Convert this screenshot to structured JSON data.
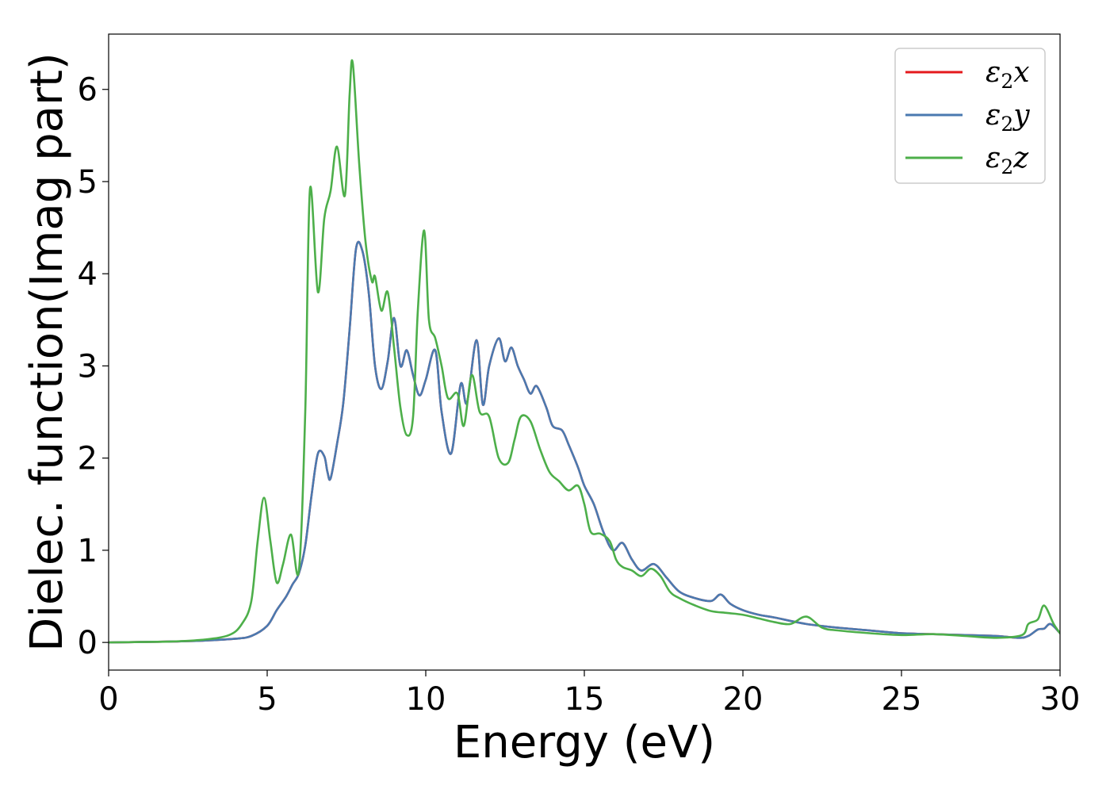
{
  "chart_data": {
    "type": "line",
    "title": "",
    "xlabel": "Energy (eV)",
    "ylabel": "Dielec. function(Imag part)",
    "xlim": [
      0,
      30
    ],
    "ylim": [
      -0.3,
      6.6
    ],
    "xticks": [
      0,
      5,
      10,
      15,
      20,
      25,
      30
    ],
    "yticks": [
      0,
      1,
      2,
      3,
      4,
      5,
      6
    ],
    "grid": false,
    "legend_position": "top-right",
    "series": [
      {
        "name": "ε₂x",
        "legend_base": "ε",
        "legend_sub": "2",
        "legend_var": "x",
        "color": "#e41a1c",
        "x": [
          0,
          1,
          2,
          3,
          4,
          4.5,
          5,
          5.3,
          5.6,
          5.8,
          6.0,
          6.2,
          6.4,
          6.6,
          6.8,
          6.9,
          7.0,
          7.2,
          7.4,
          7.6,
          7.8,
          8.0,
          8.2,
          8.4,
          8.6,
          8.8,
          9.0,
          9.2,
          9.4,
          9.6,
          9.8,
          10.0,
          10.3,
          10.5,
          10.8,
          11.1,
          11.3,
          11.6,
          11.8,
          12.0,
          12.3,
          12.5,
          12.7,
          12.9,
          13.1,
          13.3,
          13.5,
          13.8,
          14.0,
          14.3,
          14.5,
          14.8,
          15.0,
          15.3,
          15.6,
          15.9,
          16.2,
          16.5,
          16.8,
          17.2,
          17.6,
          18.0,
          18.5,
          19.0,
          19.3,
          19.6,
          20.0,
          20.5,
          21.0,
          22.0,
          23.0,
          24.0,
          25.0,
          26.0,
          27.0,
          28.0,
          28.7,
          29.0,
          29.3,
          29.5,
          29.7,
          30.0
        ],
        "values": [
          0,
          0.005,
          0.01,
          0.02,
          0.04,
          0.07,
          0.18,
          0.35,
          0.5,
          0.63,
          0.75,
          1.05,
          1.6,
          2.05,
          2.02,
          1.85,
          1.78,
          2.15,
          2.6,
          3.4,
          4.27,
          4.25,
          3.8,
          3.0,
          2.75,
          3.05,
          3.52,
          3.0,
          3.17,
          2.9,
          2.68,
          2.85,
          3.17,
          2.5,
          2.05,
          2.8,
          2.6,
          3.28,
          2.58,
          3.0,
          3.3,
          3.05,
          3.2,
          3.0,
          2.85,
          2.7,
          2.78,
          2.55,
          2.35,
          2.3,
          2.15,
          1.9,
          1.7,
          1.5,
          1.2,
          1.0,
          1.08,
          0.9,
          0.78,
          0.85,
          0.7,
          0.55,
          0.48,
          0.45,
          0.52,
          0.42,
          0.35,
          0.3,
          0.27,
          0.2,
          0.16,
          0.13,
          0.1,
          0.09,
          0.08,
          0.07,
          0.05,
          0.07,
          0.14,
          0.15,
          0.2,
          0.1
        ]
      },
      {
        "name": "ε₂y",
        "legend_base": "ε",
        "legend_sub": "2",
        "legend_var": "y",
        "color": "#4a7ab0",
        "x": [
          0,
          1,
          2,
          3,
          4,
          4.5,
          5,
          5.3,
          5.6,
          5.8,
          6.0,
          6.2,
          6.4,
          6.6,
          6.8,
          6.9,
          7.0,
          7.2,
          7.4,
          7.6,
          7.8,
          8.0,
          8.2,
          8.4,
          8.6,
          8.8,
          9.0,
          9.2,
          9.4,
          9.6,
          9.8,
          10.0,
          10.3,
          10.5,
          10.8,
          11.1,
          11.3,
          11.6,
          11.8,
          12.0,
          12.3,
          12.5,
          12.7,
          12.9,
          13.1,
          13.3,
          13.5,
          13.8,
          14.0,
          14.3,
          14.5,
          14.8,
          15.0,
          15.3,
          15.6,
          15.9,
          16.2,
          16.5,
          16.8,
          17.2,
          17.6,
          18.0,
          18.5,
          19.0,
          19.3,
          19.6,
          20.0,
          20.5,
          21.0,
          22.0,
          23.0,
          24.0,
          25.0,
          26.0,
          27.0,
          28.0,
          28.7,
          29.0,
          29.3,
          29.5,
          29.7,
          30.0
        ],
        "values": [
          0,
          0.005,
          0.01,
          0.02,
          0.04,
          0.07,
          0.18,
          0.35,
          0.5,
          0.63,
          0.75,
          1.05,
          1.6,
          2.05,
          2.02,
          1.85,
          1.78,
          2.15,
          2.6,
          3.4,
          4.27,
          4.25,
          3.8,
          3.0,
          2.75,
          3.05,
          3.52,
          3.0,
          3.17,
          2.9,
          2.68,
          2.85,
          3.17,
          2.5,
          2.05,
          2.8,
          2.6,
          3.28,
          2.58,
          3.0,
          3.3,
          3.05,
          3.2,
          3.0,
          2.85,
          2.7,
          2.78,
          2.55,
          2.35,
          2.3,
          2.15,
          1.9,
          1.7,
          1.5,
          1.2,
          1.0,
          1.08,
          0.9,
          0.78,
          0.85,
          0.7,
          0.55,
          0.48,
          0.45,
          0.52,
          0.42,
          0.35,
          0.3,
          0.27,
          0.2,
          0.16,
          0.13,
          0.1,
          0.09,
          0.08,
          0.07,
          0.05,
          0.07,
          0.14,
          0.15,
          0.2,
          0.1
        ]
      },
      {
        "name": "ε₂z",
        "legend_base": "ε",
        "legend_sub": "2",
        "legend_var": "z",
        "color": "#4daf4a",
        "x": [
          0,
          1,
          2,
          3,
          3.8,
          4.2,
          4.5,
          4.7,
          4.9,
          5.1,
          5.3,
          5.5,
          5.75,
          6.0,
          6.2,
          6.35,
          6.6,
          6.8,
          7.0,
          7.2,
          7.45,
          7.6,
          7.7,
          7.9,
          8.1,
          8.3,
          8.4,
          8.6,
          8.8,
          9.0,
          9.2,
          9.4,
          9.6,
          9.75,
          9.95,
          10.1,
          10.3,
          10.5,
          10.7,
          11.0,
          11.2,
          11.45,
          11.7,
          12.0,
          12.3,
          12.6,
          12.8,
          13.0,
          13.3,
          13.6,
          13.9,
          14.2,
          14.5,
          14.8,
          15.0,
          15.2,
          15.5,
          15.8,
          16.0,
          16.2,
          16.5,
          16.8,
          17.1,
          17.4,
          17.7,
          18.0,
          18.5,
          19.0,
          19.5,
          20.0,
          20.5,
          21.0,
          21.5,
          22.0,
          22.5,
          23.0,
          24.0,
          25.0,
          26.0,
          27.0,
          28.0,
          28.8,
          29.0,
          29.3,
          29.5,
          29.8,
          30.0
        ],
        "values": [
          0,
          0.005,
          0.01,
          0.03,
          0.08,
          0.2,
          0.45,
          1.1,
          1.57,
          1.1,
          0.65,
          0.85,
          1.17,
          0.78,
          2.5,
          4.92,
          3.8,
          4.6,
          4.9,
          5.38,
          4.85,
          5.95,
          6.28,
          5.2,
          4.35,
          3.92,
          3.97,
          3.6,
          3.8,
          3.2,
          2.55,
          2.25,
          2.45,
          3.6,
          4.47,
          3.5,
          3.3,
          3.0,
          2.65,
          2.7,
          2.35,
          2.9,
          2.5,
          2.45,
          2.0,
          1.95,
          2.2,
          2.45,
          2.4,
          2.1,
          1.85,
          1.75,
          1.65,
          1.7,
          1.5,
          1.2,
          1.18,
          1.1,
          0.9,
          0.82,
          0.78,
          0.72,
          0.8,
          0.72,
          0.55,
          0.48,
          0.4,
          0.34,
          0.32,
          0.3,
          0.26,
          0.22,
          0.2,
          0.28,
          0.16,
          0.13,
          0.1,
          0.08,
          0.09,
          0.07,
          0.05,
          0.08,
          0.2,
          0.25,
          0.4,
          0.2,
          0.1
        ]
      }
    ]
  }
}
